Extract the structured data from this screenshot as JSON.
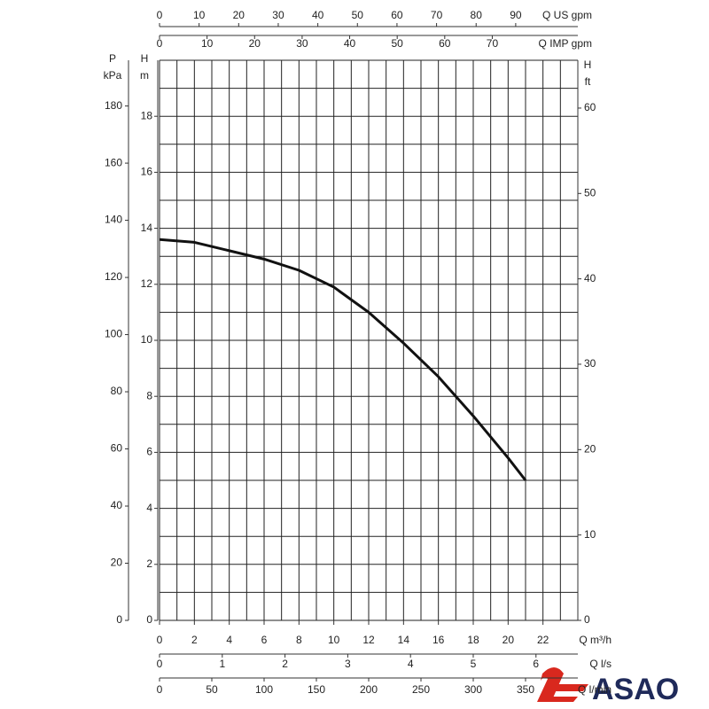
{
  "chart_data": {
    "type": "line",
    "x": [
      0,
      2,
      4,
      6,
      8,
      10,
      12,
      14,
      16,
      18,
      20,
      21
    ],
    "series": [
      {
        "name": "H",
        "color": "#111111",
        "values": [
          13.6,
          13.5,
          13.2,
          12.9,
          12.5,
          11.9,
          11.0,
          9.9,
          8.7,
          7.3,
          5.8,
          5.0
        ]
      }
    ],
    "xlabel": "Q m³/h",
    "ylabel": [
      "H",
      "m"
    ],
    "xlim": [
      0,
      24
    ],
    "xticks": [
      0,
      2,
      4,
      6,
      8,
      10,
      12,
      14,
      16,
      18,
      20,
      22
    ],
    "ylim": [
      0,
      20
    ],
    "yticks": [
      0,
      2,
      4,
      6,
      8,
      10,
      12,
      14,
      16,
      18
    ],
    "grid": {
      "x_step": 1,
      "y_step": 1
    },
    "secondary_axes": [
      {
        "side": "left",
        "label": [
          "P",
          "kPa"
        ],
        "lim": [
          0,
          196
        ],
        "ticks": [
          0,
          20,
          40,
          60,
          80,
          100,
          120,
          140,
          160,
          180
        ]
      },
      {
        "side": "right",
        "label": [
          "H",
          "ft"
        ],
        "lim": [
          0,
          65.6
        ],
        "ticks": [
          0,
          10,
          20,
          30,
          40,
          50,
          60
        ]
      },
      {
        "side": "top",
        "label": [
          "Q US gpm"
        ],
        "lim": [
          0,
          105.7
        ],
        "ticks": [
          0,
          10,
          20,
          30,
          40,
          50,
          60,
          70,
          80,
          90
        ]
      },
      {
        "side": "top",
        "label": [
          "Q IMP gpm"
        ],
        "lim": [
          0,
          88
        ],
        "ticks": [
          0,
          10,
          20,
          30,
          40,
          50,
          60,
          70
        ]
      },
      {
        "side": "bottom",
        "label": [
          "Q l/s"
        ],
        "lim": [
          0,
          6.667
        ],
        "ticks": [
          0,
          1,
          2,
          3,
          4,
          5,
          6
        ]
      },
      {
        "side": "bottom",
        "label": [
          "Q l/min"
        ],
        "lim": [
          0,
          400
        ],
        "ticks": [
          0,
          50,
          100,
          150,
          200,
          250,
          300,
          350
        ]
      }
    ]
  },
  "logo": "ASAO"
}
